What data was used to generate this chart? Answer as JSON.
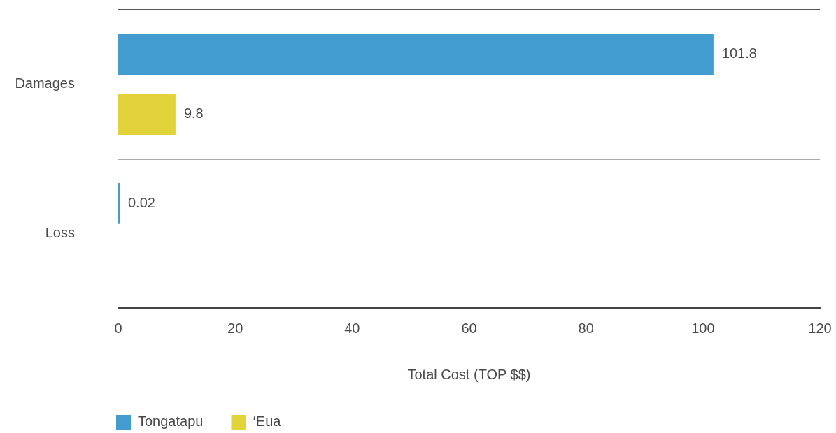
{
  "chart_data": {
    "type": "bar",
    "orientation": "horizontal",
    "categories": [
      "Damages",
      "Loss"
    ],
    "series": [
      {
        "name": "Tongatapu",
        "color": "#439cd0",
        "values": [
          101.8,
          0.02
        ]
      },
      {
        "name": "‘Eua",
        "color": "#e2d33a",
        "values": [
          9.8,
          null
        ]
      }
    ],
    "xlim": [
      0,
      120
    ],
    "xticks": [
      0,
      20,
      40,
      60,
      80,
      100,
      120
    ],
    "xlabel": "Total Cost (TOP $$)",
    "data_labels": true,
    "grid": "y",
    "legend": "bottom left"
  }
}
